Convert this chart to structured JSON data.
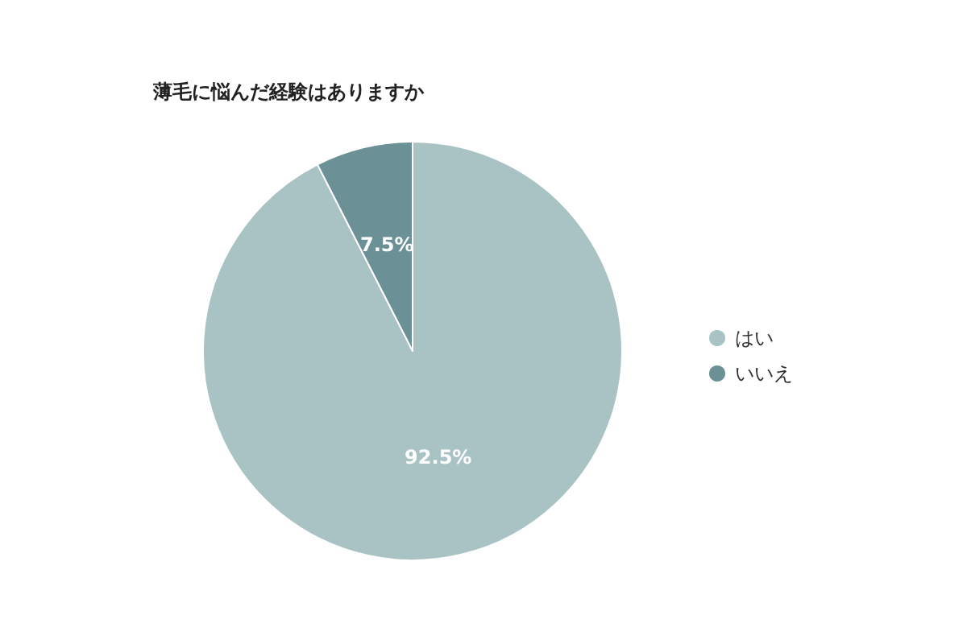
{
  "chart_data": {
    "type": "pie",
    "title": "薄毛に悩んだ経験はありますか",
    "categories": [
      "はい",
      "いいえ"
    ],
    "values": [
      92.5,
      7.5
    ],
    "colors": [
      "#a9c2c3",
      "#6b9095"
    ],
    "value_labels": [
      "92.5%",
      "7.5%"
    ],
    "legend": "right"
  }
}
